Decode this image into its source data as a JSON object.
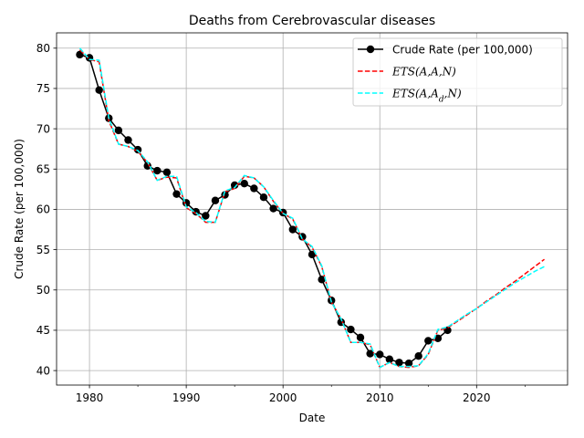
{
  "chart_data": {
    "type": "line",
    "title": "Deaths from Cerebrovascular diseases",
    "xlabel": "Date",
    "ylabel": "Crude Rate (per 100,000)",
    "xlim": [
      1976.6,
      2029.4
    ],
    "ylim": [
      38.2,
      81.9
    ],
    "x_ticks": [
      1980,
      1990,
      2000,
      2010,
      2020
    ],
    "x_tick_labels": [
      "1980",
      "1990",
      "2000",
      "2010",
      "2020"
    ],
    "x_minor_ticks": [
      1985,
      1995,
      2005,
      2015,
      2025
    ],
    "y_ticks": [
      40,
      45,
      50,
      55,
      60,
      65,
      70,
      75,
      80
    ],
    "y_tick_labels": [
      "40",
      "45",
      "50",
      "55",
      "60",
      "65",
      "70",
      "75",
      "80"
    ],
    "grid": true,
    "legend_position": "top-right",
    "series": [
      {
        "name": "Crude Rate (per 100,000)",
        "color": "#000000",
        "style": "solid-marker",
        "x": [
          1979,
          1980,
          1981,
          1982,
          1983,
          1984,
          1985,
          1986,
          1987,
          1988,
          1989,
          1990,
          1991,
          1992,
          1993,
          1994,
          1995,
          1996,
          1997,
          1998,
          1999,
          2000,
          2001,
          2002,
          2003,
          2004,
          2005,
          2006,
          2007,
          2008,
          2009,
          2010,
          2011,
          2012,
          2013,
          2014,
          2015,
          2016,
          2017
        ],
        "y": [
          79.2,
          78.8,
          74.8,
          71.3,
          69.8,
          68.6,
          67.4,
          65.4,
          64.8,
          64.6,
          61.9,
          60.8,
          59.7,
          59.2,
          61.1,
          61.8,
          63.0,
          63.2,
          62.6,
          61.5,
          60.1,
          59.6,
          57.5,
          56.6,
          54.4,
          51.3,
          48.7,
          46.0,
          45.1,
          44.1,
          42.1,
          42.0,
          41.4,
          41.0,
          40.9,
          41.8,
          43.7,
          44.0,
          45.0
        ]
      },
      {
        "name": "ETS(A,A,N)",
        "name_parts": [
          "ETS(",
          "A",
          ",",
          "A",
          ",",
          "N",
          ")"
        ],
        "color": "#ff0000",
        "style": "dashed",
        "x": [
          1979,
          1980,
          1981,
          1982,
          1983,
          1984,
          1985,
          1986,
          1987,
          1988,
          1989,
          1990,
          1991,
          1992,
          1993,
          1994,
          1995,
          1996,
          1997,
          1998,
          1999,
          2000,
          2001,
          2002,
          2003,
          2004,
          2005,
          2006,
          2007,
          2008,
          2009,
          2010,
          2011,
          2012,
          2013,
          2014,
          2015,
          2016,
          2017,
          2018,
          2019,
          2020,
          2021,
          2022,
          2023,
          2024,
          2025,
          2026,
          2027
        ],
        "y": [
          79.8,
          78.6,
          78.3,
          71.0,
          68.1,
          67.8,
          67.2,
          65.8,
          63.6,
          64.0,
          63.9,
          60.2,
          59.5,
          58.4,
          58.4,
          62.2,
          62.6,
          64.1,
          63.9,
          62.8,
          61.0,
          59.5,
          58.8,
          56.3,
          55.3,
          52.9,
          48.5,
          46.4,
          43.5,
          43.5,
          43.2,
          40.4,
          41.0,
          40.5,
          40.4,
          40.6,
          42.0,
          45.0,
          45.3,
          46.1,
          46.9,
          47.7,
          48.6,
          49.4,
          50.3,
          51.1,
          52.0,
          52.9,
          53.8
        ]
      },
      {
        "name": "ETS(A,Ad,N)",
        "name_parts": [
          "ETS(",
          "A",
          ",",
          "A",
          "d",
          ",",
          "N",
          ")"
        ],
        "color": "#00ffff",
        "style": "dashed",
        "x": [
          1979,
          1980,
          1981,
          1982,
          1983,
          1984,
          1985,
          1986,
          1987,
          1988,
          1989,
          1990,
          1991,
          1992,
          1993,
          1994,
          1995,
          1996,
          1997,
          1998,
          1999,
          2000,
          2001,
          2002,
          2003,
          2004,
          2005,
          2006,
          2007,
          2008,
          2009,
          2010,
          2011,
          2012,
          2013,
          2014,
          2015,
          2016,
          2017,
          2018,
          2019,
          2020,
          2021,
          2022,
          2023,
          2024,
          2025,
          2026,
          2027
        ],
        "y": [
          80.0,
          78.6,
          78.5,
          71.3,
          68.1,
          67.8,
          67.3,
          65.9,
          63.6,
          64.1,
          64.1,
          60.3,
          59.6,
          58.5,
          58.4,
          62.3,
          62.7,
          64.2,
          63.9,
          62.8,
          61.1,
          59.5,
          58.9,
          56.3,
          55.4,
          53.0,
          48.5,
          46.4,
          43.5,
          43.5,
          43.3,
          40.4,
          41.0,
          40.5,
          40.5,
          40.6,
          42.1,
          45.1,
          45.4,
          46.2,
          47.0,
          47.7,
          48.5,
          49.3,
          50.1,
          50.9,
          51.6,
          52.3,
          52.9
        ]
      }
    ]
  }
}
